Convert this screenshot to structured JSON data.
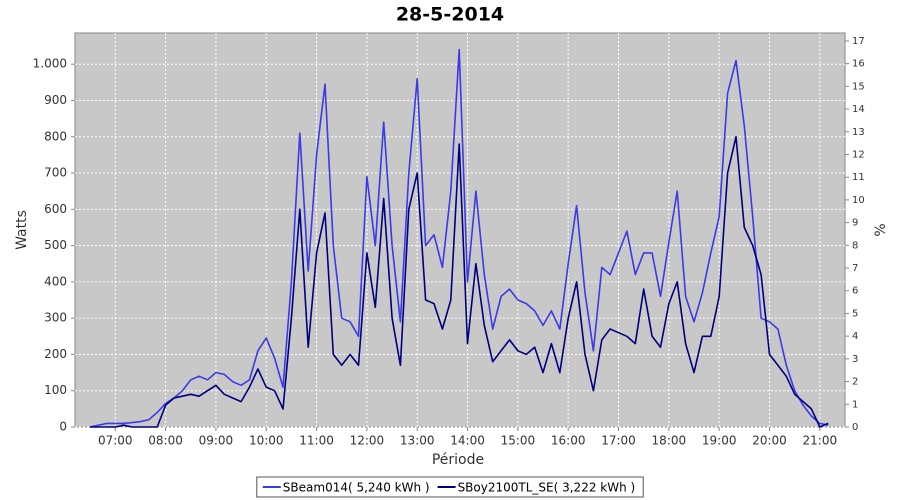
{
  "chart_data": {
    "type": "line",
    "title": "28-5-2014",
    "x_label": "Période",
    "y_label": "Watts",
    "y2_label": "%",
    "x": [
      390,
      400,
      410,
      420,
      430,
      440,
      450,
      460,
      470,
      480,
      490,
      500,
      510,
      520,
      530,
      540,
      550,
      560,
      570,
      580,
      590,
      600,
      610,
      620,
      630,
      640,
      650,
      660,
      670,
      680,
      690,
      700,
      710,
      720,
      730,
      740,
      750,
      760,
      770,
      780,
      790,
      800,
      810,
      820,
      830,
      840,
      850,
      860,
      870,
      880,
      890,
      900,
      910,
      920,
      930,
      940,
      950,
      960,
      970,
      980,
      990,
      1000,
      1010,
      1020,
      1030,
      1040,
      1050,
      1060,
      1070,
      1080,
      1090,
      1100,
      1110,
      1120,
      1130,
      1140,
      1150,
      1160,
      1170,
      1180,
      1190,
      1200,
      1210,
      1220,
      1230,
      1240,
      1250,
      1260,
      1270
    ],
    "series": [
      {
        "name": "SBeam014( 5,240 kWh )",
        "color": "#3a3ae8",
        "values": [
          0,
          5,
          10,
          10,
          10,
          12,
          15,
          20,
          40,
          65,
          80,
          100,
          130,
          140,
          130,
          150,
          145,
          125,
          115,
          130,
          210,
          245,
          190,
          110,
          400,
          810,
          430,
          750,
          945,
          500,
          300,
          290,
          250,
          690,
          500,
          840,
          500,
          290,
          700,
          960,
          500,
          530,
          440,
          650,
          1040,
          400,
          650,
          420,
          270,
          360,
          380,
          350,
          340,
          320,
          280,
          320,
          270,
          450,
          610,
          370,
          210,
          440,
          420,
          480,
          540,
          420,
          480,
          480,
          360,
          510,
          650,
          360,
          290,
          370,
          480,
          580,
          920,
          1010,
          830,
          580,
          300,
          290,
          270,
          170,
          100,
          60,
          30,
          10,
          5
        ]
      },
      {
        "name": "SBoy2100TL_SE( 3,222 kWh )",
        "color": "#00007f",
        "values": [
          0,
          0,
          0,
          0,
          5,
          0,
          0,
          0,
          0,
          60,
          80,
          85,
          90,
          85,
          100,
          115,
          90,
          80,
          70,
          110,
          160,
          110,
          100,
          50,
          300,
          600,
          220,
          480,
          590,
          200,
          170,
          200,
          170,
          480,
          330,
          630,
          300,
          170,
          600,
          700,
          350,
          340,
          270,
          350,
          780,
          230,
          450,
          280,
          180,
          210,
          240,
          210,
          200,
          220,
          150,
          230,
          150,
          300,
          400,
          200,
          100,
          240,
          270,
          260,
          250,
          230,
          380,
          250,
          220,
          340,
          400,
          230,
          150,
          250,
          250,
          360,
          700,
          800,
          550,
          500,
          420,
          200,
          170,
          140,
          90,
          70,
          50,
          0,
          10
        ]
      }
    ],
    "xlim": [
      372,
      1290
    ],
    "xticks": [
      {
        "value": 420,
        "label": "07:00"
      },
      {
        "value": 480,
        "label": "08:00"
      },
      {
        "value": 540,
        "label": "09:00"
      },
      {
        "value": 600,
        "label": "10:00"
      },
      {
        "value": 660,
        "label": "11:00"
      },
      {
        "value": 720,
        "label": "12:00"
      },
      {
        "value": 780,
        "label": "13:00"
      },
      {
        "value": 840,
        "label": "14:00"
      },
      {
        "value": 900,
        "label": "15:00"
      },
      {
        "value": 960,
        "label": "16:00"
      },
      {
        "value": 1020,
        "label": "17:00"
      },
      {
        "value": 1080,
        "label": "18:00"
      },
      {
        "value": 1140,
        "label": "19:00"
      },
      {
        "value": 1200,
        "label": "20:00"
      },
      {
        "value": 1260,
        "label": "21:00"
      }
    ],
    "ylim": [
      0,
      1086
    ],
    "yticks": [
      0,
      100,
      200,
      300,
      400,
      500,
      600,
      700,
      800,
      900,
      {
        "value": 1000,
        "label": "1.000"
      }
    ],
    "y2lim": [
      0,
      17.35
    ],
    "y2ticks": [
      0,
      1,
      2,
      3,
      4,
      5,
      6,
      7,
      8,
      9,
      10,
      11,
      12,
      13,
      14,
      15,
      16,
      17
    ],
    "grid": true,
    "legend": "bottom",
    "plot_background": "#c8c8c8"
  }
}
